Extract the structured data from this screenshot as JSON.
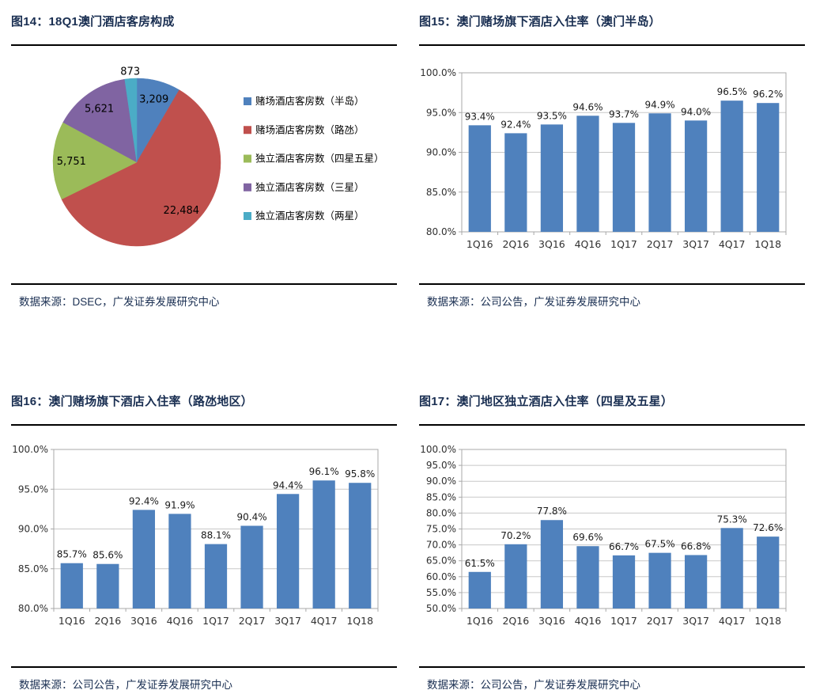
{
  "panels": [
    {
      "title": "图14：18Q1澳门酒店客房构成",
      "source": "数据来源：DSEC，广发证券发展研究中心",
      "chart": 0
    },
    {
      "title": "图15：澳门赌场旗下酒店入住率（澳门半岛）",
      "source": "数据来源：公司公告，广发证券发展研究中心",
      "chart": 1
    },
    {
      "title": "图16：澳门赌场旗下酒店入住率（路氹地区）",
      "source": "数据来源：公司公告，广发证券发展研究中心",
      "chart": 2
    },
    {
      "title": "图17：澳门地区独立酒店入住率（四星及五星）",
      "source": "数据来源：公司公告，广发证券发展研究中心",
      "chart": 3
    }
  ],
  "chart_data": [
    {
      "type": "pie",
      "title": "18Q1澳门酒店客房构成",
      "labels": [
        "赌场酒店客房数（半岛）",
        "赌场酒店客房数（路氹）",
        "独立酒店客房数（四星五星）",
        "独立酒店客房数（三星）",
        "独立酒店客房数（两星）"
      ],
      "values": [
        3209,
        22484,
        5751,
        5621,
        873
      ],
      "value_labels": [
        "3,209",
        "22,484",
        "5,751",
        "5,621",
        "873"
      ],
      "colors": [
        "#4F81BD",
        "#C0504D",
        "#9BBB59",
        "#8064A2",
        "#4BACC6"
      ],
      "start_angle": "top",
      "direction": "clockwise",
      "legend_position": "right"
    },
    {
      "type": "bar",
      "title": "澳门赌场旗下酒店入住率（澳门半岛）",
      "categories": [
        "1Q16",
        "2Q16",
        "3Q16",
        "4Q16",
        "1Q17",
        "2Q17",
        "3Q17",
        "4Q17",
        "1Q18"
      ],
      "values": [
        93.4,
        92.4,
        93.5,
        94.6,
        93.7,
        94.9,
        94.0,
        96.5,
        96.2
      ],
      "data_labels": [
        "93.4%",
        "92.4%",
        "93.5%",
        "94.6%",
        "93.7%",
        "94.9%",
        "94.0%",
        "96.5%",
        "96.2%"
      ],
      "ylim": [
        80,
        100
      ],
      "ytick_step": 5,
      "ytick_suffix": "%",
      "grid": true,
      "bar_color": "#4F81BD",
      "xlabel": "",
      "ylabel": ""
    },
    {
      "type": "bar",
      "title": "澳门赌场旗下酒店入住率（路氹地区）",
      "categories": [
        "1Q16",
        "2Q16",
        "3Q16",
        "4Q16",
        "1Q17",
        "2Q17",
        "3Q17",
        "4Q17",
        "1Q18"
      ],
      "values": [
        85.7,
        85.6,
        92.4,
        91.9,
        88.1,
        90.4,
        94.4,
        96.1,
        95.8
      ],
      "data_labels": [
        "85.7%",
        "85.6%",
        "92.4%",
        "91.9%",
        "88.1%",
        "90.4%",
        "94.4%",
        "96.1%",
        "95.8%"
      ],
      "ylim": [
        80,
        100
      ],
      "ytick_step": 5,
      "ytick_suffix": "%",
      "grid": true,
      "bar_color": "#4F81BD",
      "xlabel": "",
      "ylabel": ""
    },
    {
      "type": "bar",
      "title": "澳门地区独立酒店入住率（四星及五星）",
      "categories": [
        "1Q16",
        "2Q16",
        "3Q16",
        "4Q16",
        "1Q17",
        "2Q17",
        "3Q17",
        "4Q17",
        "1Q18"
      ],
      "values": [
        61.5,
        70.2,
        77.8,
        69.6,
        66.7,
        67.5,
        66.8,
        75.3,
        72.6
      ],
      "data_labels": [
        "61.5%",
        "70.2%",
        "77.8%",
        "69.6%",
        "66.7%",
        "67.5%",
        "66.8%",
        "75.3%",
        "72.6%"
      ],
      "ylim": [
        50,
        100
      ],
      "ytick_step": 5,
      "ytick_suffix": "%",
      "grid": true,
      "bar_color": "#4F81BD",
      "xlabel": "",
      "ylabel": ""
    }
  ],
  "styles": {
    "title_color": "#1a2f52",
    "rule_color": "#000000",
    "bar_color": "#4F81BD",
    "grid_color": "#c8c8c8",
    "axis_color": "#a8a8a8",
    "label_color": "#1a1a1a"
  }
}
